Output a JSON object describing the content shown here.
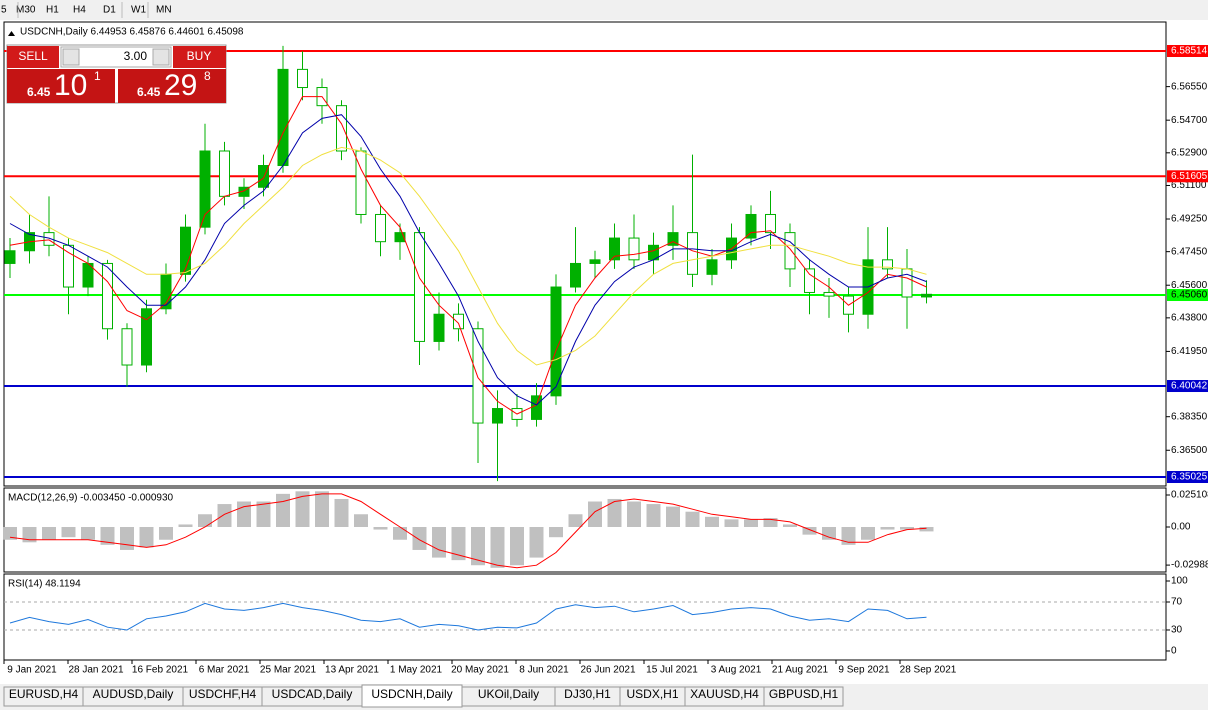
{
  "toolbar": [
    "5",
    "M30",
    "H1",
    "H4",
    "D1",
    "W1",
    "MN"
  ],
  "trade_panel": {
    "sell": "SELL",
    "lot": "3.00",
    "buy": "BUY",
    "sell_big": "6.45",
    "sell_pips": "10",
    "sell_frac": "1",
    "buy_big": "6.45",
    "buy_pips": "29",
    "buy_frac": "8"
  },
  "tabs": [
    "EURUSD,H4",
    "AUDUSD,Daily",
    "USDCHF,H4",
    "USDCAD,Daily",
    "USDCNH,Daily",
    "UKOil,Daily",
    "DJ30,H1",
    "USDX,H1",
    "XAUUSD,H4",
    "GBPUSD,H1"
  ],
  "active_tab": 4,
  "time_axis": [
    "9 Jan 2021",
    "28 Jan 2021",
    "16 Feb 2021",
    "6 Mar 2021",
    "25 Mar 2021",
    "13 Apr 2021",
    "1 May 2021",
    "20 May 2021",
    "8 Jun 2021",
    "26 Jun 2021",
    "15 Jul 2021",
    "3 Aug 2021",
    "21 Aug 2021",
    "9 Sep 2021",
    "28 Sep 2021"
  ],
  "chart_data": [
    {
      "type": "candlestick",
      "title": "USDCNH,Daily  6.44953 6.45876 6.44601 6.45098",
      "color": "#00b000",
      "open": [
        6.468,
        6.475,
        6.485,
        6.478,
        6.455,
        6.468,
        6.432,
        6.412,
        6.443,
        6.462,
        6.488,
        6.53,
        6.505,
        6.51,
        6.522,
        6.575,
        6.565,
        6.555,
        6.53,
        6.495,
        6.48,
        6.485,
        6.425,
        6.44,
        6.432,
        6.38,
        6.388,
        6.382,
        6.395,
        6.455,
        6.468,
        6.47,
        6.482,
        6.47,
        6.478,
        6.485,
        6.462,
        6.47,
        6.482,
        6.495,
        6.485,
        6.465,
        6.452,
        6.45,
        6.44,
        6.47,
        6.465,
        6.44953
      ],
      "high": [
        6.482,
        6.495,
        6.505,
        6.482,
        6.472,
        6.47,
        6.435,
        6.448,
        6.468,
        6.495,
        6.545,
        6.535,
        6.515,
        6.528,
        6.588,
        6.585,
        6.57,
        6.558,
        6.532,
        6.5,
        6.49,
        6.488,
        6.452,
        6.446,
        6.436,
        6.398,
        6.396,
        6.402,
        6.462,
        6.488,
        6.475,
        6.49,
        6.495,
        6.485,
        6.5,
        6.528,
        6.476,
        6.49,
        6.5,
        6.508,
        6.49,
        6.47,
        6.46,
        6.455,
        6.488,
        6.488,
        6.476,
        6.45876
      ],
      "low": [
        6.46,
        6.468,
        6.472,
        6.44,
        6.45,
        6.426,
        6.4,
        6.408,
        6.44,
        6.458,
        6.484,
        6.5,
        6.498,
        6.505,
        6.518,
        6.558,
        6.545,
        6.525,
        6.49,
        6.472,
        6.47,
        6.412,
        6.42,
        6.425,
        6.358,
        6.348,
        6.378,
        6.378,
        6.39,
        6.452,
        6.46,
        6.465,
        6.465,
        6.462,
        6.47,
        6.455,
        6.456,
        6.465,
        6.478,
        6.476,
        6.455,
        6.44,
        6.438,
        6.43,
        6.432,
        6.46,
        6.432,
        6.44601
      ],
      "close": [
        6.475,
        6.485,
        6.478,
        6.455,
        6.468,
        6.432,
        6.412,
        6.443,
        6.462,
        6.488,
        6.53,
        6.505,
        6.51,
        6.522,
        6.575,
        6.565,
        6.555,
        6.53,
        6.495,
        6.48,
        6.485,
        6.425,
        6.44,
        6.432,
        6.38,
        6.388,
        6.382,
        6.395,
        6.455,
        6.468,
        6.47,
        6.482,
        6.47,
        6.478,
        6.485,
        6.462,
        6.47,
        6.482,
        6.495,
        6.485,
        6.465,
        6.452,
        6.45,
        6.44,
        6.47,
        6.465,
        6.4495,
        6.45098
      ],
      "series": [
        {
          "color": "#ff0000",
          "values": [
            6.478,
            6.48,
            6.481,
            6.474,
            6.468,
            6.458,
            6.442,
            6.437,
            6.446,
            6.465,
            6.495,
            6.505,
            6.508,
            6.515,
            6.54,
            6.56,
            6.56,
            6.545,
            6.52,
            6.5,
            6.488,
            6.46,
            6.445,
            6.435,
            6.405,
            6.392,
            6.385,
            6.39,
            6.42,
            6.445,
            6.46,
            6.472,
            6.473,
            6.475,
            6.48,
            6.475,
            6.472,
            6.476,
            6.485,
            6.486,
            6.476,
            6.462,
            6.455,
            6.445,
            6.452,
            6.462,
            6.46,
            6.455
          ]
        },
        {
          "color": "#0000aa",
          "values": [
            6.49,
            6.484,
            6.482,
            6.478,
            6.472,
            6.466,
            6.455,
            6.445,
            6.445,
            6.455,
            6.47,
            6.49,
            6.5,
            6.508,
            6.522,
            6.54,
            6.548,
            6.55,
            6.538,
            6.52,
            6.505,
            6.485,
            6.468,
            6.45,
            6.425,
            6.405,
            6.395,
            6.39,
            6.4,
            6.425,
            6.445,
            6.458,
            6.466,
            6.47,
            6.476,
            6.476,
            6.475,
            6.475,
            6.48,
            6.484,
            6.48,
            6.47,
            6.462,
            6.455,
            6.455,
            6.46,
            6.462,
            6.458
          ]
        },
        {
          "color": "#f0e040",
          "values": [
            6.505,
            6.495,
            6.488,
            6.482,
            6.478,
            6.474,
            6.468,
            6.462,
            6.462,
            6.463,
            6.468,
            6.478,
            6.49,
            6.5,
            6.51,
            6.522,
            6.528,
            6.532,
            6.53,
            6.525,
            6.518,
            6.505,
            6.49,
            6.475,
            6.455,
            6.435,
            6.42,
            6.412,
            6.415,
            6.42,
            6.428,
            6.44,
            6.452,
            6.462,
            6.468,
            6.47,
            6.472,
            6.474,
            6.476,
            6.478,
            6.478,
            6.475,
            6.472,
            6.468,
            6.466,
            6.466,
            6.465,
            6.462
          ]
        }
      ],
      "levels": [
        {
          "value": 6.58514,
          "label": "6.58514",
          "color": "#ff0000"
        },
        {
          "value": 6.51605,
          "label": "6.51605",
          "color": "#ff0000"
        },
        {
          "value": 6.4506,
          "label": "6.45060",
          "color": "#00ff00"
        },
        {
          "value": 6.40042,
          "label": "6.40042",
          "color": "#0000cc"
        },
        {
          "value": 6.35025,
          "label": "6.35025",
          "color": "#0000cc"
        }
      ],
      "ylim": [
        6.34529,
        6.60113
      ],
      "yticks": [
        {
          "value": 6.5655,
          "label": "6.56550"
        },
        {
          "value": 6.547,
          "label": "6.54700"
        },
        {
          "value": 6.529,
          "label": "6.52900"
        },
        {
          "value": 6.511,
          "label": "6.51100"
        },
        {
          "value": 6.4925,
          "label": "6.49250"
        },
        {
          "value": 6.4745,
          "label": "6.47450"
        },
        {
          "value": 6.456,
          "label": "6.45600"
        },
        {
          "value": 6.438,
          "label": "6.43800"
        },
        {
          "value": 6.4195,
          "label": "6.41950"
        },
        {
          "value": 6.3835,
          "label": "6.38350"
        },
        {
          "value": 6.365,
          "label": "6.36500"
        }
      ]
    },
    {
      "type": "macd",
      "title": "MACD(12,26,9) -0.003450 -0.000930",
      "series": [
        {
          "kind": "histogram",
          "color": "#c0c0c0",
          "values": [
            -0.01,
            -0.012,
            -0.01,
            -0.008,
            -0.01,
            -0.014,
            -0.018,
            -0.016,
            -0.01,
            0.002,
            0.01,
            0.018,
            0.02,
            0.02,
            0.026,
            0.028,
            0.028,
            0.022,
            0.01,
            -0.002,
            -0.01,
            -0.018,
            -0.024,
            -0.026,
            -0.03,
            -0.032,
            -0.03,
            -0.024,
            -0.008,
            0.01,
            0.02,
            0.022,
            0.02,
            0.018,
            0.016,
            0.012,
            0.008,
            0.006,
            0.006,
            0.007,
            0.002,
            -0.006,
            -0.01,
            -0.014,
            -0.01,
            -0.002,
            -0.002,
            -0.00345
          ]
        },
        {
          "kind": "line",
          "color": "#ff0000",
          "values": [
            -0.008,
            -0.01,
            -0.01,
            -0.01,
            -0.01,
            -0.012,
            -0.014,
            -0.016,
            -0.014,
            -0.008,
            0.0,
            0.01,
            0.016,
            0.018,
            0.02,
            0.024,
            0.026,
            0.026,
            0.02,
            0.01,
            0.0,
            -0.01,
            -0.018,
            -0.022,
            -0.026,
            -0.03,
            -0.032,
            -0.03,
            -0.02,
            -0.004,
            0.012,
            0.02,
            0.022,
            0.02,
            0.018,
            0.014,
            0.01,
            0.008,
            0.006,
            0.006,
            0.004,
            -0.002,
            -0.008,
            -0.012,
            -0.012,
            -0.006,
            -0.002,
            -0.00093
          ]
        }
      ],
      "ylim": [
        -0.0353,
        0.0306
      ],
      "yticks": [
        0.025108,
        {
          "value": 0,
          "label": "0.00"
        },
        {
          "value": -0.029881,
          "label": "-0.02988"
        }
      ]
    },
    {
      "type": "line",
      "title": "RSI(14) 48.1194",
      "series": [
        {
          "color": "#1e78dc",
          "values": [
            40,
            48,
            42,
            38,
            45,
            34,
            30,
            46,
            50,
            56,
            68,
            60,
            58,
            62,
            68,
            62,
            58,
            52,
            44,
            42,
            46,
            34,
            38,
            36,
            30,
            34,
            33,
            40,
            60,
            66,
            62,
            64,
            56,
            60,
            65,
            52,
            55,
            60,
            62,
            60,
            50,
            44,
            46,
            42,
            60,
            58,
            46,
            48.1194
          ]
        }
      ],
      "levels": [
        70,
        30
      ],
      "ylim": [
        -12.9,
        110
      ],
      "yticks": [
        100,
        70,
        30,
        0
      ]
    }
  ]
}
